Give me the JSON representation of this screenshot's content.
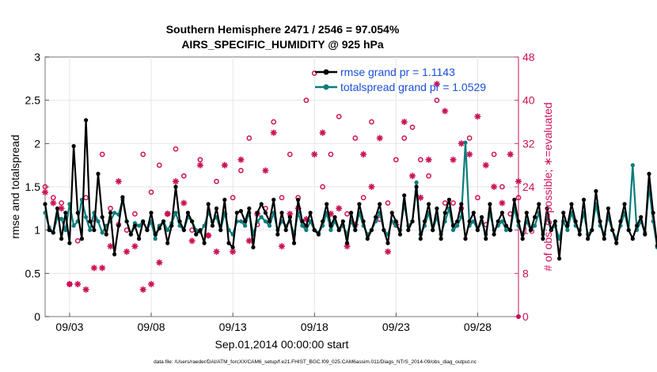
{
  "chart_data": {
    "type": "line",
    "title_line1": "Southern Hemisphere 2471 / 2546 = 97.054%",
    "title_line2": "AIRS_SPECIFIC_HUMIDITY @ 925 hPa",
    "xlabel": "Sep.01,2014 00:00:00 start",
    "ylabel_left": "rmse and totalspread",
    "ylabel_right": "# of obs: o=possible; ∗=evaluated",
    "footnote": "data file: /Users/raeder/DAI/ATM_forcXX/CAM6_setup/f.e21.FHIST_BGC.f09_025.CAM6assim.011/Diags_NTrS_2014-09/obs_diag_output.nc",
    "x_range": [
      1.5,
      30.5
    ],
    "ylim_left": [
      0,
      3
    ],
    "ylim_right": [
      0,
      48
    ],
    "x_tick_positions": [
      3,
      8,
      13,
      18,
      23,
      28
    ],
    "x_tick_labels": [
      "09/03",
      "09/08",
      "09/13",
      "09/18",
      "09/23",
      "09/28"
    ],
    "y_left_ticks": [
      "0",
      "0.5",
      "1",
      "1.5",
      "2",
      "2.5",
      "3"
    ],
    "y_left_tick_values": [
      0,
      0.5,
      1,
      1.5,
      2,
      2.5,
      3
    ],
    "y_right_ticks": [
      "0",
      "8",
      "16",
      "24",
      "32",
      "40",
      "48"
    ],
    "y_right_tick_values": [
      0,
      8,
      16,
      24,
      32,
      40,
      48
    ],
    "colors": {
      "rmse": "#000000",
      "spread": "#0c7c7c",
      "obs": "#cc1155",
      "legend_text": "#1a4fd6"
    },
    "series": [
      {
        "name": "rmse",
        "legend": "rmse grand pr = 1.1143",
        "x_start": 1.5,
        "x_step": 0.25,
        "values": [
          1.3,
          1.0,
          0.97,
          1.25,
          0.9,
          1.2,
          0.85,
          1.97,
          1.2,
          0.9,
          2.27,
          1.1,
          1.0,
          1.65,
          1.15,
          0.95,
          1.2,
          0.72,
          1.05,
          1.38,
          1.1,
          0.95,
          1.05,
          0.9,
          1.1,
          1.0,
          1.2,
          0.95,
          1.02,
          1.1,
          0.85,
          1.05,
          1.5,
          1.1,
          1.0,
          1.2,
          1.1,
          0.95,
          1.0,
          0.85,
          1.3,
          1.05,
          1.25,
          1.0,
          1.35,
          0.85,
          0.8,
          1.2,
          1.22,
          1.1,
          1.25,
          0.8,
          1.2,
          1.3,
          1.2,
          1.1,
          1.35,
          0.95,
          1.2,
          1.0,
          1.15,
          0.85,
          1.35,
          1.1,
          1.05,
          1.2,
          1.0,
          0.95,
          1.1,
          1.3,
          1.05,
          1.15,
          1.0,
          1.1,
          0.85,
          1.2,
          1.0,
          1.3,
          1.1,
          0.9,
          1.0,
          1.15,
          1.3,
          1.0,
          0.85,
          1.2,
          1.1,
          0.95,
          1.4,
          1.0,
          1.1,
          1.5,
          0.9,
          1.1,
          1.3,
          1.0,
          1.25,
          0.9,
          1.2,
          1.35,
          1.05,
          1.1,
          1.3,
          0.9,
          1.1,
          1.2,
          1.0,
          1.15,
          0.9,
          1.3,
          0.95,
          1.1,
          1.2,
          1.05,
          1.0,
          1.35,
          1.1,
          0.9,
          1.2,
          1.0,
          1.15,
          1.3,
          0.9,
          1.25,
          1.0,
          1.1,
          0.67,
          1.2,
          1.05,
          1.3,
          1.1,
          0.95,
          1.35,
          0.9,
          1.0,
          1.45,
          1.1,
          0.9,
          1.25,
          1.0,
          0.85,
          1.1,
          1.3,
          1.0,
          0.9,
          1.05,
          1.15,
          0.95,
          1.65,
          1.2,
          0.82,
          0.97
        ]
      },
      {
        "name": "totalspread",
        "legend": "totalspread grand pr = 1.0529",
        "x_start": 1.5,
        "x_step": 0.25,
        "values": [
          1.2,
          1.03,
          0.97,
          1.15,
          1.13,
          1.0,
          1.3,
          1.05,
          1.1,
          1.35,
          1.15,
          1.0,
          1.2,
          1.1,
          0.97,
          1.05,
          1.1,
          1.2,
          1.18,
          1.35,
          1.1,
          0.95,
          1.08,
          1.05,
          1.1,
          1.0,
          1.1,
          0.9,
          1.05,
          1.1,
          1.0,
          1.08,
          1.2,
          1.05,
          1.0,
          1.15,
          1.1,
          1.0,
          0.98,
          1.05,
          1.2,
          1.1,
          1.15,
          1.0,
          1.2,
          1.0,
          0.95,
          1.1,
          1.1,
          1.05,
          1.2,
          0.95,
          1.1,
          1.15,
          1.1,
          1.05,
          1.2,
          1.0,
          1.1,
          1.05,
          1.1,
          0.95,
          1.2,
          1.05,
          1.0,
          1.1,
          1.0,
          0.97,
          1.05,
          1.2,
          1.0,
          1.1,
          1.0,
          1.05,
          0.95,
          1.1,
          1.0,
          1.2,
          1.05,
          0.95,
          1.0,
          1.1,
          1.2,
          1.0,
          0.95,
          1.1,
          1.05,
          1.0,
          1.3,
          1.05,
          1.1,
          1.55,
          0.95,
          1.05,
          1.2,
          1.0,
          1.15,
          0.95,
          1.1,
          1.25,
          1.0,
          1.05,
          1.15,
          2.01,
          1.05,
          1.1,
          1.0,
          1.1,
          0.95,
          1.2,
          1.0,
          1.05,
          1.1,
          1.0,
          1.0,
          1.25,
          1.05,
          0.95,
          1.1,
          1.0,
          1.05,
          1.2,
          0.95,
          1.15,
          1.0,
          1.05,
          0.9,
          1.1,
          1.0,
          1.2,
          1.05,
          1.0,
          1.2,
          0.95,
          1.0,
          1.3,
          1.05,
          0.95,
          1.15,
          1.0,
          0.9,
          1.05,
          1.2,
          1.0,
          1.75,
          1.0,
          1.1,
          0.97,
          1.5,
          1.1,
          0.8,
          0.95
        ]
      },
      {
        "name": "obs_possible",
        "marker": "o",
        "x_start": 1.5,
        "x_step": 0.5,
        "values": [
          24,
          22,
          21,
          6,
          14,
          22,
          18,
          30,
          20,
          17,
          16,
          19,
          30,
          23,
          28,
          19,
          31,
          26,
          16,
          29,
          15,
          25,
          19,
          22,
          27,
          33,
          17,
          20,
          36,
          22,
          30,
          22,
          40,
          45,
          24,
          30,
          37,
          19,
          33,
          22,
          36,
          18,
          21,
          29,
          33,
          35,
          29,
          26,
          40,
          21,
          21,
          20,
          33,
          22,
          17,
          30,
          24,
          19,
          22
        ]
      },
      {
        "name": "obs_evaluated",
        "marker": "*",
        "x_start": 1.5,
        "x_step": 0.5,
        "values": [
          23,
          21,
          20,
          6,
          6,
          5,
          9,
          9,
          13,
          25,
          12,
          13,
          5,
          6,
          10,
          19,
          25,
          21,
          14,
          28,
          15,
          12,
          28,
          12,
          29,
          14,
          19,
          27,
          34,
          13,
          19,
          20,
          18,
          30,
          34,
          19,
          20,
          13,
          17,
          30,
          24,
          33,
          12,
          17,
          36,
          26,
          22,
          29,
          43,
          38,
          29,
          32,
          30,
          37,
          28,
          24,
          21,
          30,
          25
        ]
      }
    ]
  }
}
